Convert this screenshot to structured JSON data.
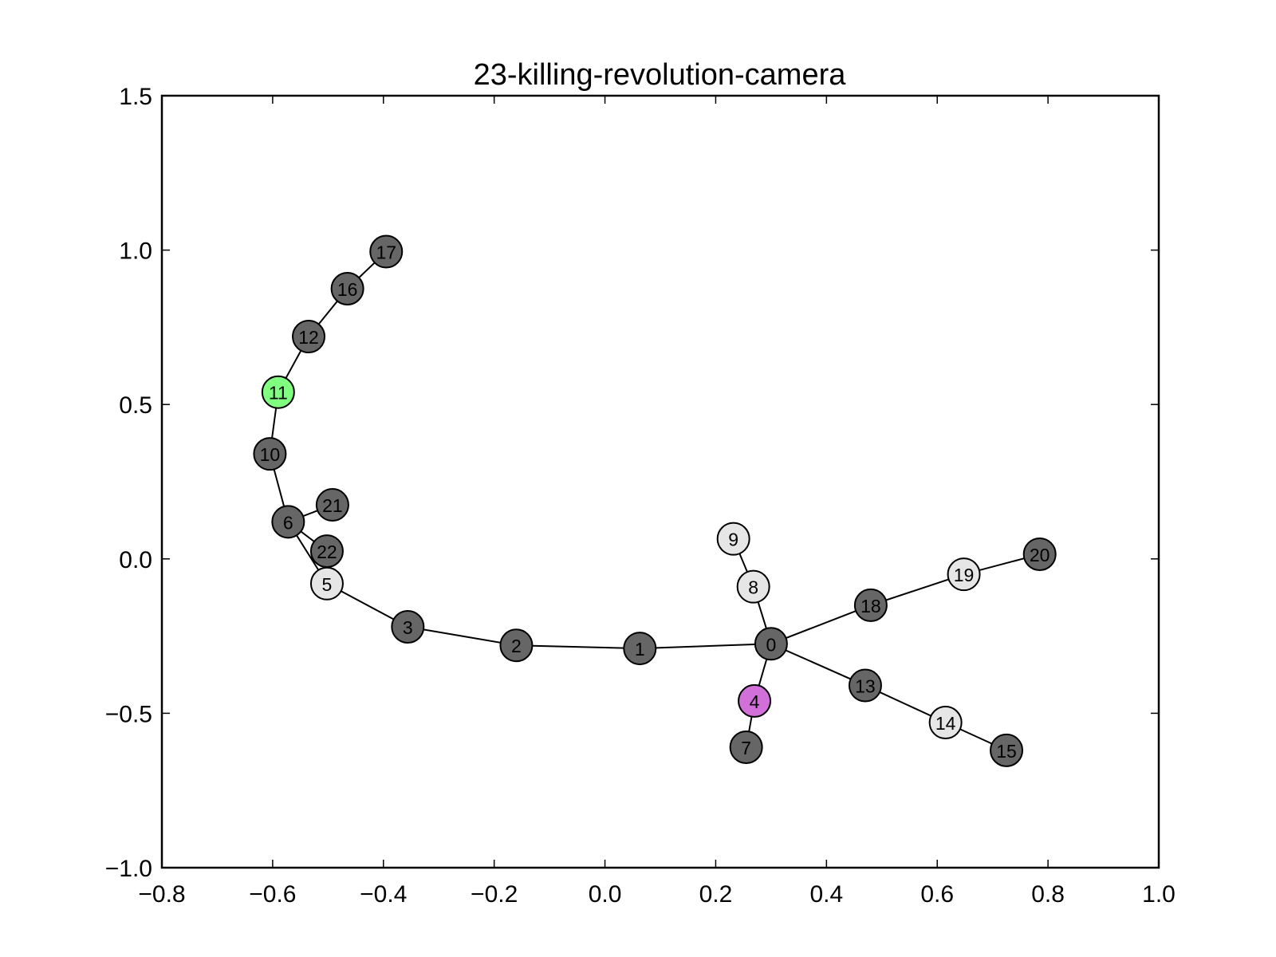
{
  "title": "23-killing-revolution-camera",
  "colors": {
    "dark": "#666666",
    "light": "#e6e6e6",
    "green": "#80ff80",
    "violet": "#d070d8"
  },
  "chart_data": {
    "type": "scatter",
    "xlim": [
      -0.8,
      1.0
    ],
    "ylim": [
      -1.0,
      1.5
    ],
    "xticks": [
      {
        "value": -0.8,
        "label": "−0.8"
      },
      {
        "value": -0.6,
        "label": "−0.6"
      },
      {
        "value": -0.4,
        "label": "−0.4"
      },
      {
        "value": -0.2,
        "label": "−0.2"
      },
      {
        "value": 0.0,
        "label": "0.0"
      },
      {
        "value": 0.2,
        "label": "0.2"
      },
      {
        "value": 0.4,
        "label": "0.4"
      },
      {
        "value": 0.6,
        "label": "0.6"
      },
      {
        "value": 0.8,
        "label": "0.8"
      },
      {
        "value": 1.0,
        "label": "1.0"
      }
    ],
    "yticks": [
      {
        "value": -1.0,
        "label": "−1.0"
      },
      {
        "value": -0.5,
        "label": "−0.5"
      },
      {
        "value": 0.0,
        "label": "0.0"
      },
      {
        "value": 0.5,
        "label": "0.5"
      },
      {
        "value": 1.0,
        "label": "1.0"
      },
      {
        "value": 1.5,
        "label": "1.5"
      }
    ],
    "grid": false,
    "nodes": [
      {
        "id": "0",
        "x": 0.3,
        "y": -0.275,
        "color": "dark"
      },
      {
        "id": "1",
        "x": 0.063,
        "y": -0.29,
        "color": "dark"
      },
      {
        "id": "2",
        "x": -0.16,
        "y": -0.28,
        "color": "dark"
      },
      {
        "id": "3",
        "x": -0.356,
        "y": -0.22,
        "color": "dark"
      },
      {
        "id": "4",
        "x": 0.27,
        "y": -0.46,
        "color": "violet"
      },
      {
        "id": "5",
        "x": -0.502,
        "y": -0.08,
        "color": "light"
      },
      {
        "id": "6",
        "x": -0.572,
        "y": 0.12,
        "color": "dark"
      },
      {
        "id": "7",
        "x": 0.255,
        "y": -0.61,
        "color": "dark"
      },
      {
        "id": "8",
        "x": 0.268,
        "y": -0.09,
        "color": "light"
      },
      {
        "id": "9",
        "x": 0.232,
        "y": 0.065,
        "color": "light"
      },
      {
        "id": "10",
        "x": -0.605,
        "y": 0.34,
        "color": "dark"
      },
      {
        "id": "11",
        "x": -0.59,
        "y": 0.54,
        "color": "green"
      },
      {
        "id": "12",
        "x": -0.535,
        "y": 0.72,
        "color": "dark"
      },
      {
        "id": "13",
        "x": 0.47,
        "y": -0.41,
        "color": "dark"
      },
      {
        "id": "14",
        "x": 0.615,
        "y": -0.53,
        "color": "light"
      },
      {
        "id": "15",
        "x": 0.725,
        "y": -0.62,
        "color": "dark"
      },
      {
        "id": "16",
        "x": -0.465,
        "y": 0.875,
        "color": "dark"
      },
      {
        "id": "17",
        "x": -0.395,
        "y": 0.995,
        "color": "dark"
      },
      {
        "id": "18",
        "x": 0.48,
        "y": -0.15,
        "color": "dark"
      },
      {
        "id": "19",
        "x": 0.648,
        "y": -0.05,
        "color": "light"
      },
      {
        "id": "20",
        "x": 0.785,
        "y": 0.015,
        "color": "dark"
      },
      {
        "id": "21",
        "x": -0.492,
        "y": 0.175,
        "color": "dark"
      },
      {
        "id": "22",
        "x": -0.502,
        "y": 0.025,
        "color": "dark"
      }
    ],
    "edges": [
      [
        "0",
        "1"
      ],
      [
        "1",
        "2"
      ],
      [
        "2",
        "3"
      ],
      [
        "3",
        "5"
      ],
      [
        "5",
        "6"
      ],
      [
        "6",
        "21"
      ],
      [
        "6",
        "22"
      ],
      [
        "6",
        "10"
      ],
      [
        "10",
        "11"
      ],
      [
        "11",
        "12"
      ],
      [
        "12",
        "16"
      ],
      [
        "16",
        "17"
      ],
      [
        "0",
        "8"
      ],
      [
        "8",
        "9"
      ],
      [
        "0",
        "4"
      ],
      [
        "4",
        "7"
      ],
      [
        "0",
        "13"
      ],
      [
        "13",
        "14"
      ],
      [
        "14",
        "15"
      ],
      [
        "0",
        "18"
      ],
      [
        "18",
        "19"
      ],
      [
        "19",
        "20"
      ]
    ]
  }
}
